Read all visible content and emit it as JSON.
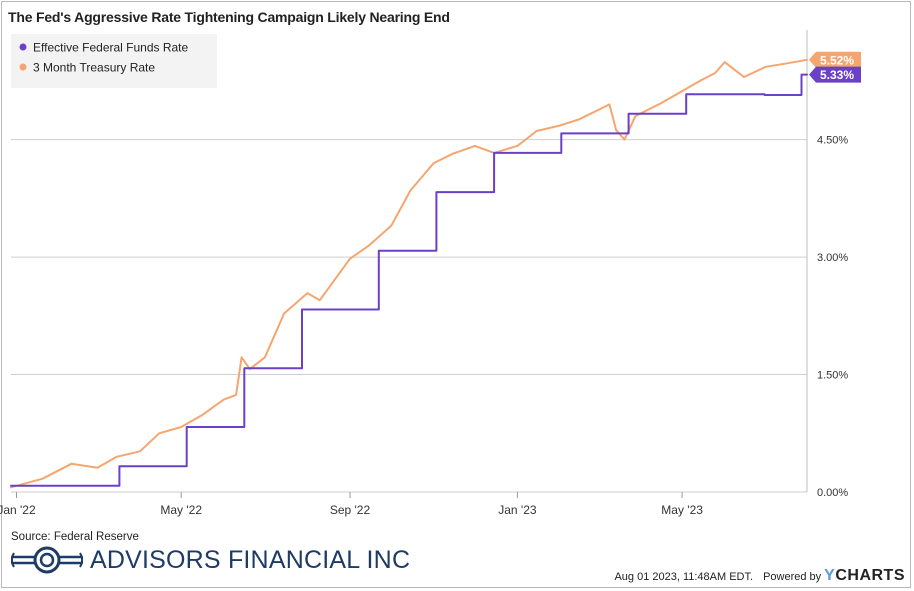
{
  "title": "The Fed's Aggressive Rate Tightening Campaign Likely Nearing End",
  "source": "Source: Federal Reserve",
  "brand": "ADVISORS FINANCIAL INC",
  "timestamp": "Aug 01 2023, 11:48AM EDT.",
  "powered_by": "Powered by",
  "ycharts": {
    "y": "Y",
    "rest": "CHARTS"
  },
  "colors": {
    "ffr": "#6a40c9",
    "tsy": "#f6a56e",
    "grid": "#cfcfcf",
    "brand": "#1e3a66"
  },
  "chart_data": {
    "type": "line",
    "title": "The Fed's Aggressive Rate Tightening Campaign Likely Nearing End",
    "xlabel": "",
    "ylabel": "",
    "x_range": [
      "2021-12-28",
      "2023-07-31"
    ],
    "ylim": [
      0,
      5.9
    ],
    "y_ticks": [
      {
        "value": 0,
        "label": "0.00%"
      },
      {
        "value": 1.5,
        "label": "1.50%"
      },
      {
        "value": 3.0,
        "label": "3.00%"
      },
      {
        "value": 4.5,
        "label": "4.50%"
      }
    ],
    "x_ticks": [
      {
        "date": "2022-01-01",
        "label": "Jan '22"
      },
      {
        "date": "2022-05-01",
        "label": "May '22"
      },
      {
        "date": "2022-09-01",
        "label": "Sep '22"
      },
      {
        "date": "2023-01-01",
        "label": "Jan '23"
      },
      {
        "date": "2023-05-01",
        "label": "May '23"
      }
    ],
    "grid": "horizontal",
    "legend_position": "top-left",
    "series": [
      {
        "name": "Effective Federal Funds Rate",
        "color": "#6a40c9",
        "step": true,
        "end_label": "5.33%",
        "points": [
          [
            "2021-12-28",
            0.08
          ],
          [
            "2022-03-17",
            0.33
          ],
          [
            "2022-05-05",
            0.83
          ],
          [
            "2022-06-16",
            1.58
          ],
          [
            "2022-07-28",
            2.33
          ],
          [
            "2022-09-22",
            3.08
          ],
          [
            "2022-11-03",
            3.83
          ],
          [
            "2022-12-15",
            4.33
          ],
          [
            "2023-02-02",
            4.58
          ],
          [
            "2023-03-23",
            4.83
          ],
          [
            "2023-05-04",
            5.08
          ],
          [
            "2023-06-30",
            5.07
          ],
          [
            "2023-07-27",
            5.33
          ],
          [
            "2023-07-31",
            5.33
          ]
        ]
      },
      {
        "name": "3 Month Treasury Rate",
        "color": "#f6a56e",
        "step": false,
        "end_label": "5.52%",
        "points": [
          [
            "2021-12-28",
            0.06
          ],
          [
            "2022-01-20",
            0.17
          ],
          [
            "2022-02-10",
            0.36
          ],
          [
            "2022-03-01",
            0.31
          ],
          [
            "2022-03-15",
            0.45
          ],
          [
            "2022-04-01",
            0.52
          ],
          [
            "2022-04-15",
            0.75
          ],
          [
            "2022-05-01",
            0.83
          ],
          [
            "2022-05-16",
            0.98
          ],
          [
            "2022-06-01",
            1.18
          ],
          [
            "2022-06-10",
            1.24
          ],
          [
            "2022-06-14",
            1.72
          ],
          [
            "2022-06-20",
            1.57
          ],
          [
            "2022-07-01",
            1.72
          ],
          [
            "2022-07-15",
            2.28
          ],
          [
            "2022-08-01",
            2.54
          ],
          [
            "2022-08-10",
            2.45
          ],
          [
            "2022-09-01",
            2.98
          ],
          [
            "2022-09-15",
            3.15
          ],
          [
            "2022-10-01",
            3.4
          ],
          [
            "2022-10-15",
            3.85
          ],
          [
            "2022-11-01",
            4.2
          ],
          [
            "2022-11-15",
            4.32
          ],
          [
            "2022-12-01",
            4.42
          ],
          [
            "2022-12-15",
            4.33
          ],
          [
            "2023-01-01",
            4.42
          ],
          [
            "2023-01-15",
            4.61
          ],
          [
            "2023-02-01",
            4.68
          ],
          [
            "2023-02-15",
            4.76
          ],
          [
            "2023-03-01",
            4.88
          ],
          [
            "2023-03-09",
            4.95
          ],
          [
            "2023-03-14",
            4.62
          ],
          [
            "2023-03-20",
            4.5
          ],
          [
            "2023-03-28",
            4.8
          ],
          [
            "2023-04-15",
            4.96
          ],
          [
            "2023-05-01",
            5.12
          ],
          [
            "2023-05-15",
            5.26
          ],
          [
            "2023-05-25",
            5.35
          ],
          [
            "2023-06-01",
            5.49
          ],
          [
            "2023-06-15",
            5.3
          ],
          [
            "2023-07-01",
            5.43
          ],
          [
            "2023-07-15",
            5.47
          ],
          [
            "2023-07-31",
            5.52
          ]
        ]
      }
    ]
  }
}
